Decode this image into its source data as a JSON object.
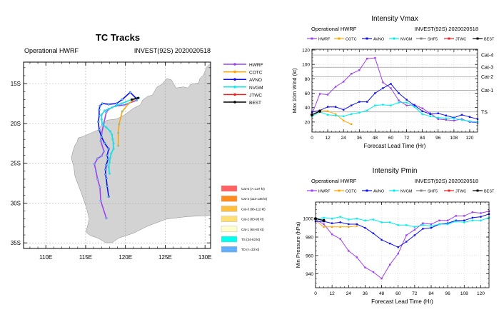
{
  "chart_data": [
    {
      "type": "map-tracks",
      "title": "TC Tracks",
      "subtitle_left": "Operational HWRF",
      "subtitle_right": "INVEST(92S) 2020020518",
      "lon_range": [
        107.2,
        130.7
      ],
      "lat_range_south": [
        12.3,
        35.7
      ],
      "lon_ticks": [
        "110E",
        "115E",
        "120E",
        "125E",
        "130E"
      ],
      "lon_tick_values": [
        110,
        115,
        120,
        125,
        130
      ],
      "lat_ticks": [
        "15S",
        "20S",
        "25S",
        "30S",
        "35S"
      ],
      "lat_tick_values": [
        15,
        20,
        25,
        30,
        35
      ],
      "grid": true,
      "land_color": "#d3d3d3",
      "legend": [
        {
          "name": "HWRF",
          "color": "#a040f0"
        },
        {
          "name": "COTC",
          "color": "#ffa500"
        },
        {
          "name": "AVNO",
          "color": "#1010ee"
        },
        {
          "name": "NVGM",
          "color": "#00eeee"
        },
        {
          "name": "JTWC",
          "color": "#ee2020"
        },
        {
          "name": "BEST",
          "color": "#000000"
        }
      ],
      "intensity_legend": [
        {
          "label": "Cat-5 (>=137 kt)",
          "color": "#ff6060"
        },
        {
          "label": "Cat-4 (113-136 kt)",
          "color": "#ff8c20"
        },
        {
          "label": "Cat-3 (96-112 kt)",
          "color": "#ffc040"
        },
        {
          "label": "Cat-2 (83-95 kt)",
          "color": "#ffe070"
        },
        {
          "label": "Cat-1 (64-82 kt)",
          "color": "#ffffcc"
        },
        {
          "label": "TS (34-63 kt)",
          "color": "#00ffee"
        },
        {
          "label": "TD (<=33 kt)",
          "color": "#60b0ff"
        }
      ],
      "tracks": [
        {
          "name": "HWRF",
          "color": "#a040f0",
          "points_lon_lat": [
            [
              121.4,
              17.1
            ],
            [
              119.8,
              17.7
            ],
            [
              118.8,
              17.8
            ],
            [
              117.9,
              18.2
            ],
            [
              117.6,
              18.6
            ],
            [
              117.3,
              19.9
            ],
            [
              117.0,
              21.3
            ],
            [
              116.9,
              22.2
            ],
            [
              117.3,
              23.5
            ],
            [
              117.0,
              24.1
            ],
            [
              116.5,
              24.4
            ],
            [
              116.1,
              25.1
            ],
            [
              116.3,
              26.0
            ],
            [
              116.5,
              27.0
            ],
            [
              116.8,
              28.0
            ],
            [
              116.9,
              29.7
            ],
            [
              117.6,
              31.9
            ]
          ]
        },
        {
          "name": "COTC",
          "color": "#ffa500",
          "points_lon_lat": [
            [
              121.4,
              16.8
            ],
            [
              120.4,
              17.5
            ],
            [
              119.6,
              18.5
            ],
            [
              119.2,
              20.1
            ],
            [
              119.1,
              21.2
            ],
            [
              119.1,
              22.8
            ]
          ]
        },
        {
          "name": "AVNO",
          "color": "#1010ee",
          "points_lon_lat": [
            [
              121.4,
              16.9
            ],
            [
              120.6,
              16.1
            ],
            [
              119.6,
              17.0
            ],
            [
              118.9,
              17.5
            ],
            [
              117.9,
              17.6
            ],
            [
              117.1,
              17.5
            ],
            [
              116.8,
              17.8
            ],
            [
              116.7,
              18.3
            ],
            [
              116.7,
              19.0
            ],
            [
              116.6,
              19.8
            ],
            [
              116.7,
              20.8
            ],
            [
              117.0,
              21.7
            ],
            [
              117.4,
              22.5
            ],
            [
              117.9,
              23.2
            ],
            [
              117.7,
              24.0
            ],
            [
              117.8,
              24.5
            ],
            [
              117.6,
              25.2
            ],
            [
              117.5,
              25.8
            ],
            [
              117.5,
              26.4
            ],
            [
              117.6,
              26.9
            ],
            [
              117.7,
              27.9
            ],
            [
              117.9,
              29.2
            ]
          ]
        },
        {
          "name": "NVGM",
          "color": "#00e5e5",
          "points_lon_lat": [
            [
              121.7,
              16.8
            ],
            [
              120.8,
              17.0
            ],
            [
              119.5,
              17.5
            ],
            [
              118.3,
              18.0
            ],
            [
              117.4,
              18.4
            ],
            [
              117.0,
              18.9
            ],
            [
              117.0,
              19.5
            ],
            [
              117.1,
              20.1
            ],
            [
              117.6,
              20.5
            ],
            [
              118.1,
              21.0
            ],
            [
              118.3,
              21.4
            ],
            [
              118.4,
              22.0
            ],
            [
              118.5,
              22.5
            ],
            [
              118.5,
              23.2
            ],
            [
              118.2,
              23.8
            ],
            [
              118.1,
              24.3
            ],
            [
              118.0,
              24.9
            ],
            [
              117.9,
              25.5
            ],
            [
              118.0,
              26.3
            ]
          ]
        },
        {
          "name": "BEST",
          "color": "#000000",
          "points_lon_lat": [
            [
              121.6,
              16.8
            ],
            [
              120.8,
              17.0
            ]
          ]
        }
      ]
    },
    {
      "type": "line",
      "title": "Intensity Vmax",
      "subtitle_left": "Operational HWRF",
      "subtitle_right": "INVEST(92S) 2020020518",
      "xlabel": "Forecast Lead Time (Hr)",
      "ylabel": "Max 10m Wind (kt)",
      "xlim": [
        0,
        126
      ],
      "ylim": [
        6,
        121
      ],
      "xticks": [
        0,
        12,
        24,
        36,
        48,
        60,
        72,
        84,
        96,
        108,
        120
      ],
      "yticks": [
        20,
        40,
        60,
        80,
        100,
        120
      ],
      "grid": true,
      "legend_position": "top",
      "reference_lines": [
        {
          "label": "TS",
          "value": 34
        },
        {
          "label": "Cat-1",
          "value": 64
        },
        {
          "label": "Cat-2",
          "value": 83
        },
        {
          "label": "Cat-3",
          "value": 96
        },
        {
          "label": "Cat-4",
          "value": 113
        }
      ],
      "legend": [
        {
          "name": "HWRF",
          "color": "#a040f0"
        },
        {
          "name": "COTC",
          "color": "#ffa500"
        },
        {
          "name": "AVNO",
          "color": "#1010ee"
        },
        {
          "name": "NVGM",
          "color": "#00eeee"
        },
        {
          "name": "SHF5",
          "color": "#808080"
        },
        {
          "name": "JTWC",
          "color": "#ee2020"
        },
        {
          "name": "BEST",
          "color": "#000000"
        }
      ],
      "series": [
        {
          "name": "HWRF",
          "color": "#a040f0",
          "x": [
            0,
            6,
            12,
            18,
            24,
            30,
            36,
            42,
            48,
            54,
            60,
            66,
            72,
            78,
            84,
            90,
            96,
            102,
            108,
            114,
            120,
            126
          ],
          "values": [
            31,
            59,
            58,
            69,
            76,
            87,
            92,
            108,
            109,
            75,
            67,
            50,
            43,
            44,
            39,
            32,
            24,
            23,
            22,
            24,
            20,
            19
          ]
        },
        {
          "name": "COTC",
          "color": "#ffa500",
          "x": [
            0,
            6,
            12,
            18,
            24,
            30
          ],
          "values": [
            30,
            36,
            35,
            31,
            22,
            17
          ]
        },
        {
          "name": "AVNO",
          "color": "#1010ee",
          "x": [
            0,
            6,
            12,
            18,
            24,
            30,
            36,
            42,
            48,
            54,
            60,
            66,
            72,
            78,
            84,
            90,
            96,
            102,
            108,
            114,
            120,
            126
          ],
          "values": [
            34,
            36,
            41,
            41,
            37,
            43,
            48,
            48,
            60,
            67,
            73,
            60,
            51,
            43,
            35,
            31,
            32,
            29,
            26,
            30,
            27,
            24
          ]
        },
        {
          "name": "NVGM",
          "color": "#00eeee",
          "x": [
            0,
            6,
            12,
            18,
            24,
            30,
            36,
            42,
            48,
            54,
            60,
            66,
            72,
            78,
            84,
            90,
            96,
            102,
            108,
            114,
            120,
            126
          ],
          "values": [
            28,
            34,
            30,
            29,
            28,
            31,
            33,
            36,
            43,
            44,
            43,
            47,
            47,
            41,
            31,
            28,
            26,
            25,
            25,
            23,
            21,
            20
          ]
        },
        {
          "name": "BEST",
          "color": "#000000",
          "x": [
            0,
            6
          ],
          "values": [
            30,
            35
          ]
        }
      ]
    },
    {
      "type": "line",
      "title": "Intensity Pmin",
      "subtitle_left": "Operational HWRF",
      "subtitle_right": "INVEST(92S) 2020020518",
      "xlabel": "Forecast Lead Time (Hr)",
      "ylabel": "Min Pressure (hPa)",
      "xlim": [
        0,
        126
      ],
      "ylim": [
        925,
        1018
      ],
      "xticks": [
        0,
        12,
        24,
        36,
        48,
        60,
        72,
        84,
        96,
        108,
        120
      ],
      "yticks": [
        940,
        960,
        980,
        1000
      ],
      "grid": true,
      "legend_position": "top",
      "reference_lines": [],
      "legend": [
        {
          "name": "HWRF",
          "color": "#a040f0"
        },
        {
          "name": "COTC",
          "color": "#ffa500"
        },
        {
          "name": "AVNO",
          "color": "#1010ee"
        },
        {
          "name": "NVGM",
          "color": "#00eeee"
        },
        {
          "name": "SHF5",
          "color": "#808080"
        },
        {
          "name": "JTWC",
          "color": "#ee2020"
        },
        {
          "name": "BEST",
          "color": "#000000"
        }
      ],
      "series": [
        {
          "name": "HWRF",
          "color": "#a040f0",
          "x": [
            0,
            6,
            12,
            18,
            24,
            30,
            36,
            42,
            48,
            54,
            60,
            66,
            72,
            78,
            84,
            90,
            96,
            102,
            108,
            114,
            120,
            126
          ],
          "values": [
            999,
            994,
            983,
            978,
            965,
            958,
            947,
            942,
            935,
            950,
            962,
            982,
            988,
            995,
            994,
            998,
            998,
            1003,
            1003,
            1007,
            1006,
            1008
          ]
        },
        {
          "name": "COTC",
          "color": "#ffa500",
          "x": [
            0,
            6,
            12,
            18,
            24,
            30
          ],
          "values": [
            998,
            991,
            991,
            991,
            991,
            992
          ]
        },
        {
          "name": "AVNO",
          "color": "#1010ee",
          "x": [
            0,
            6,
            12,
            18,
            24,
            30,
            36,
            42,
            48,
            54,
            60,
            66,
            72,
            78,
            84,
            90,
            96,
            102,
            108,
            114,
            120,
            126
          ],
          "values": [
            997,
            997,
            995,
            996,
            994,
            994,
            990,
            984,
            977,
            973,
            969,
            975,
            982,
            989,
            990,
            994,
            995,
            998,
            998,
            1001,
            1002,
            1005
          ]
        },
        {
          "name": "NVGM",
          "color": "#00eeee",
          "x": [
            0,
            6,
            12,
            18,
            24,
            30,
            36,
            42,
            48,
            54,
            60,
            66,
            72,
            78,
            84,
            90,
            96,
            102,
            108,
            114,
            120,
            126
          ],
          "values": [
            999,
            1001,
            1000,
            1002,
            999,
            1000,
            998,
            999,
            996,
            996,
            993,
            993,
            991,
            993,
            992,
            994,
            994,
            997,
            996,
            998,
            998,
            1001
          ]
        },
        {
          "name": "BEST",
          "color": "#000000",
          "x": [
            0,
            6
          ],
          "values": [
            1000,
            998
          ]
        }
      ]
    }
  ]
}
